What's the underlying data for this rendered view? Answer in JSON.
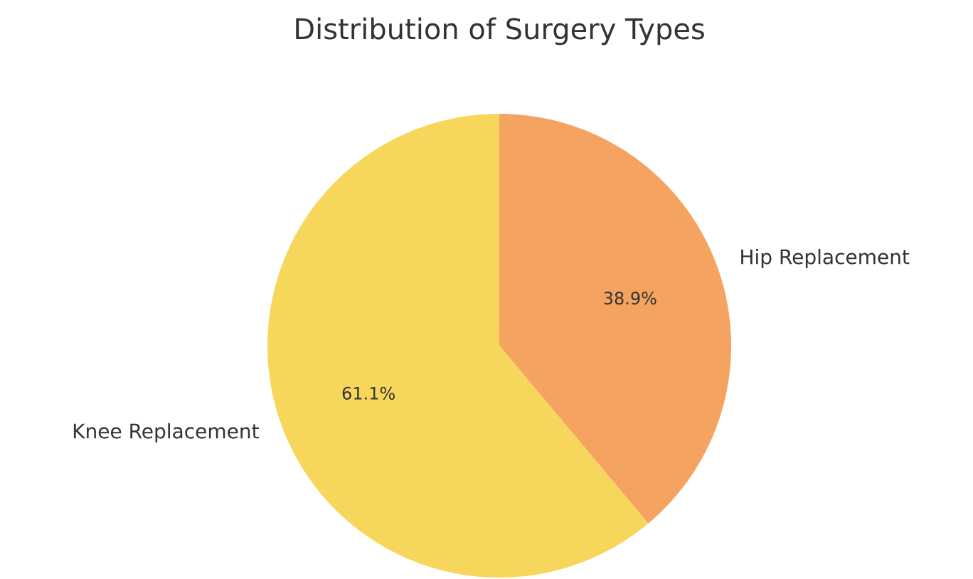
{
  "chart_data": {
    "type": "pie",
    "title": "Distribution of Surgery Types",
    "categories": [
      "Hip Replacement",
      "Knee Replacement"
    ],
    "values": [
      38.9,
      61.1
    ],
    "colors": [
      "#f4a460",
      "#f7d65c"
    ],
    "value_labels": [
      "38.9%",
      "61.1%"
    ]
  }
}
